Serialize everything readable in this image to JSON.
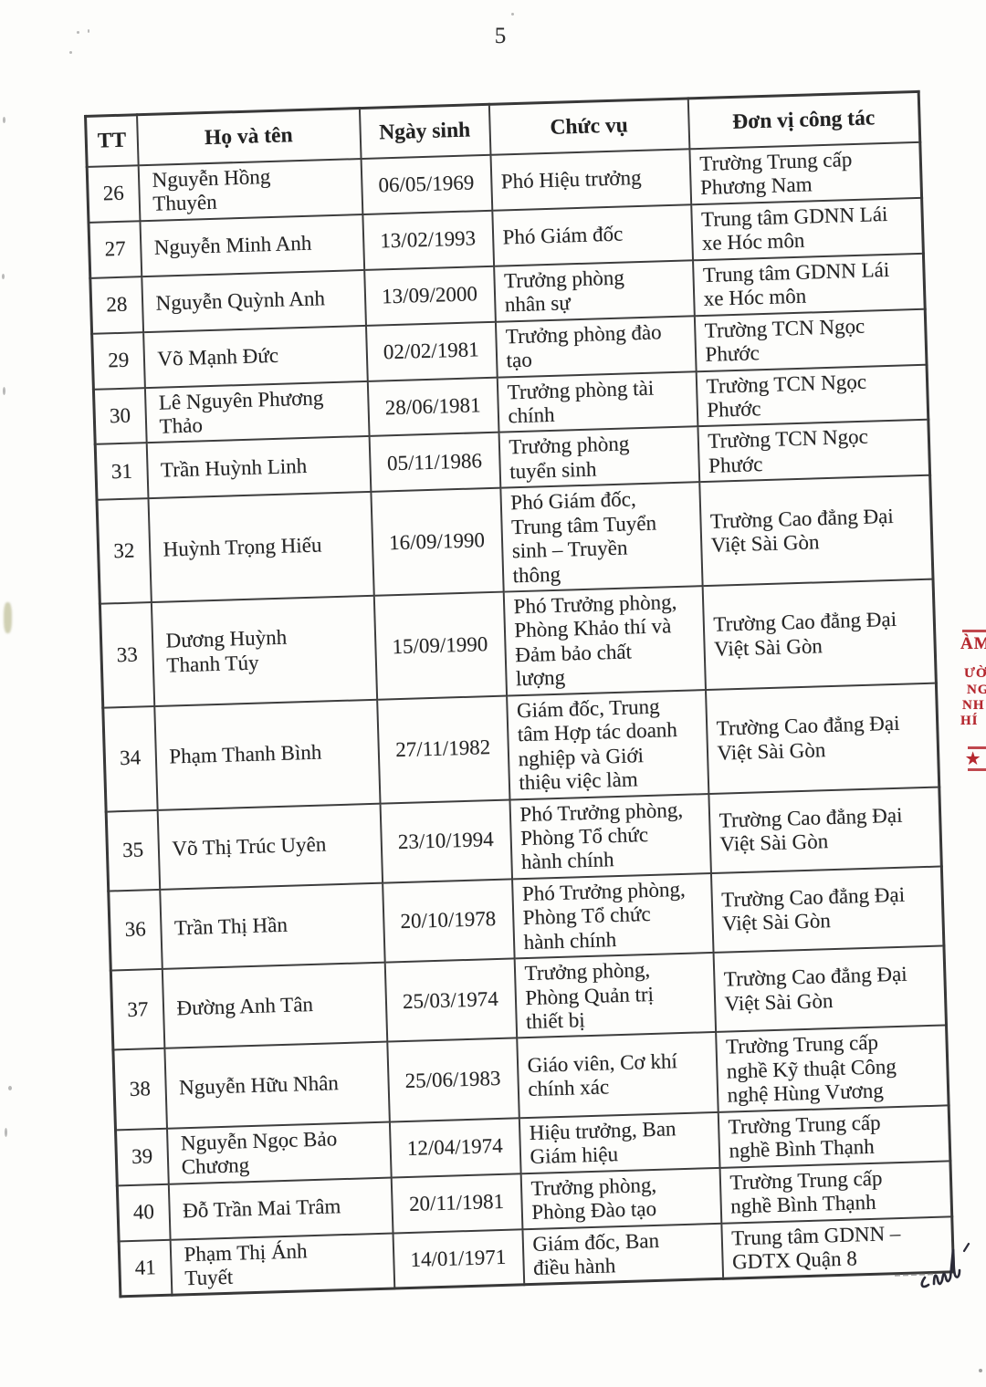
{
  "page": {
    "number": "5"
  },
  "table": {
    "headers": [
      "TT",
      "Họ và tên",
      "Ngày sinh",
      "Chức vụ",
      "Đơn vị công tác"
    ],
    "rows": [
      {
        "tt": "26",
        "name": "Nguyễn Hồng\nThuyên",
        "dob": "06/05/1969",
        "position": "Phó Hiệu trưởng",
        "unit": "Trường Trung cấp\nPhương Nam"
      },
      {
        "tt": "27",
        "name": "Nguyễn Minh Anh",
        "dob": "13/02/1993",
        "position": "Phó Giám đốc",
        "unit": "Trung tâm GDNN Lái\nxe Hóc môn"
      },
      {
        "tt": "28",
        "name": "Nguyễn Quỳnh Anh",
        "dob": "13/09/2000",
        "position": "Trưởng phòng\nnhân sự",
        "unit": "Trung tâm GDNN Lái\nxe Hóc môn"
      },
      {
        "tt": "29",
        "name": "Võ Mạnh Đức",
        "dob": "02/02/1981",
        "position": "Trưởng phòng đào\ntạo",
        "unit": "Trường TCN Ngọc\nPhước"
      },
      {
        "tt": "30",
        "name": "Lê Nguyên Phương\nThảo",
        "dob": "28/06/1981",
        "position": "Trưởng phòng tài\nchính",
        "unit": "Trường TCN Ngọc\nPhước"
      },
      {
        "tt": "31",
        "name": "Trần Huỳnh Linh",
        "dob": "05/11/1986",
        "position": "Trưởng phòng\ntuyển sinh",
        "unit": "Trường TCN Ngọc\nPhước"
      },
      {
        "tt": "32",
        "name": "Huỳnh Trọng Hiếu",
        "dob": "16/09/1990",
        "position": "Phó Giám đốc,\nTrung tâm Tuyển\nsinh – Truyền\nthông",
        "unit": "Trường Cao đẳng Đại\nViệt Sài Gòn"
      },
      {
        "tt": "33",
        "name": "Dương Huỳnh\nThanh Túy",
        "dob": "15/09/1990",
        "position": "Phó Trưởng phòng,\nPhòng Khảo thí và\nĐảm bảo chất\nlượng",
        "unit": "Trường Cao đẳng Đại\nViệt Sài Gòn"
      },
      {
        "tt": "34",
        "name": "Phạm Thanh Bình",
        "dob": "27/11/1982",
        "position": "Giám đốc, Trung\ntâm Hợp tác doanh\nnghiệp và Giới\nthiệu việc làm",
        "unit": "Trường Cao đẳng Đại\nViệt Sài Gòn"
      },
      {
        "tt": "35",
        "name": "Võ Thị Trúc Uyên",
        "dob": "23/10/1994",
        "position": "Phó Trưởng phòng,\nPhòng Tổ chức\nhành chính",
        "unit": "Trường Cao đẳng Đại\nViệt Sài Gòn"
      },
      {
        "tt": "36",
        "name": "Trần Thị Hần",
        "dob": "20/10/1978",
        "position": "Phó Trưởng phòng,\nPhòng Tổ chức\nhành chính",
        "unit": "Trường Cao đẳng Đại\nViệt Sài Gòn"
      },
      {
        "tt": "37",
        "name": "Đường Anh Tân",
        "dob": "25/03/1974",
        "position": "Trưởng phòng,\nPhòng Quản trị\nthiết bị",
        "unit": "Trường Cao đẳng Đại\nViệt Sài Gòn"
      },
      {
        "tt": "38",
        "name": "Nguyễn Hữu Nhân",
        "dob": "25/06/1983",
        "position": "Giáo viên, Cơ khí\nchính xác",
        "unit": "Trường Trung cấp\nnghề Kỹ thuật Công\nnghệ Hùng Vương"
      },
      {
        "tt": "39",
        "name": "Nguyễn Ngọc Bảo\nChương",
        "dob": "12/04/1974",
        "position": "Hiệu trưởng, Ban\nGiám hiệu",
        "unit": "Trường Trung cấp\nnghề Bình Thạnh"
      },
      {
        "tt": "40",
        "name": "Đỗ Trần Mai Trâm",
        "dob": "20/11/1981",
        "position": "Trưởng phòng,\nPhòng Đào tạo",
        "unit": "Trường Trung cấp\nnghề Bình Thạnh"
      },
      {
        "tt": "41",
        "name": "Phạm Thị Ánh\nTuyết",
        "dob": "14/01/1971",
        "position": "Giám đốc, Ban\nđiều hành",
        "unit": "Trung tâm GDNN –\nGDTX Quận 8"
      }
    ]
  },
  "stamp": {
    "color": "#b5282f",
    "fragments": [
      "ÀM",
      "ƯỜ",
      "NG",
      "NH",
      "HÍ"
    ],
    "star": "★"
  }
}
